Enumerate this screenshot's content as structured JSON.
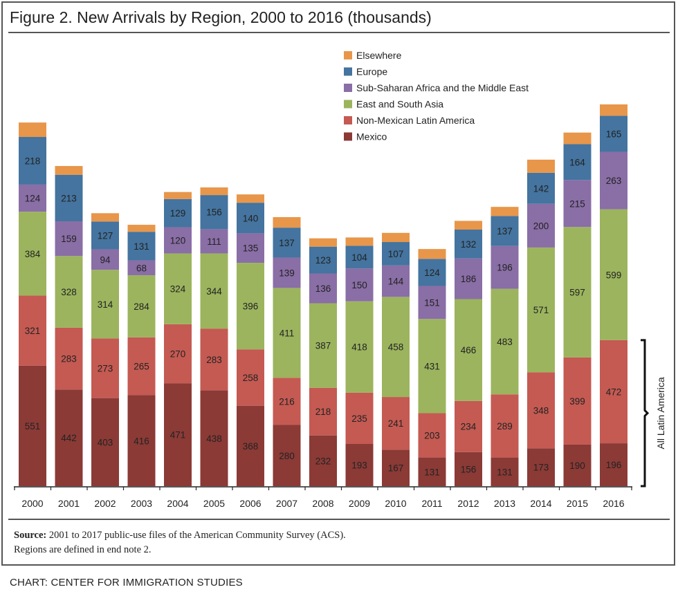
{
  "header": {
    "title": "Figure 2. New Arrivals by Region, 2000 to 2016 (thousands)"
  },
  "footer": {
    "source_label": "Source:",
    "source_text": " 2001 to 2017 public-use files of the American Community  Survey (ACS).",
    "note": "Regions are defined in end note 2.",
    "credit": "CHART: CENTER FOR IMMIGRATION STUDIES"
  },
  "chart_data": {
    "type": "bar",
    "stacked": true,
    "title": "Figure 2. New Arrivals by Region, 2000 to 2016 (thousands)",
    "xlabel": "",
    "ylabel": "",
    "units": "thousands",
    "ylim": [
      0,
      1700
    ],
    "grid": false,
    "legend_position": "top-right",
    "categories": [
      "2000",
      "2001",
      "2002",
      "2003",
      "2004",
      "2005",
      "2006",
      "2007",
      "2008",
      "2009",
      "2010",
      "2011",
      "2012",
      "2013",
      "2014",
      "2015",
      "2016"
    ],
    "series": [
      {
        "name": "Mexico",
        "color": "#8b3a36",
        "labeled": true,
        "values": [
          551,
          442,
          403,
          416,
          471,
          438,
          368,
          280,
          232,
          193,
          167,
          131,
          156,
          131,
          173,
          190,
          196
        ]
      },
      {
        "name": "Non-Mexican Latin America",
        "color": "#c45a52",
        "labeled": true,
        "values": [
          321,
          283,
          273,
          265,
          270,
          283,
          258,
          216,
          218,
          235,
          241,
          203,
          234,
          289,
          348,
          399,
          472
        ]
      },
      {
        "name": "East and South Asia",
        "color": "#9cb45e",
        "labeled": true,
        "values": [
          384,
          328,
          314,
          284,
          324,
          344,
          396,
          411,
          387,
          418,
          458,
          431,
          466,
          483,
          571,
          597,
          599
        ]
      },
      {
        "name": "Sub-Saharan Africa and the Middle East",
        "color": "#8a6ea6",
        "labeled": true,
        "values": [
          124,
          159,
          94,
          68,
          120,
          111,
          135,
          139,
          136,
          150,
          144,
          151,
          186,
          196,
          200,
          215,
          263
        ]
      },
      {
        "name": "Europe",
        "color": "#44749f",
        "labeled": true,
        "values": [
          218,
          213,
          127,
          131,
          129,
          156,
          140,
          137,
          123,
          104,
          107,
          124,
          132,
          137,
          142,
          164,
          165
        ]
      },
      {
        "name": "Elsewhere",
        "color": "#e8964a",
        "labeled": false,
        "estimated": true,
        "values": [
          66,
          40,
          38,
          32,
          32,
          35,
          38,
          48,
          38,
          38,
          42,
          45,
          40,
          42,
          60,
          53,
          52
        ]
      }
    ],
    "legend": [
      "Elsewhere",
      "Europe",
      "Sub-Saharan Africa and the Middle East",
      "East and South Asia",
      "Non-Mexican Latin America",
      "Mexico"
    ],
    "annotations": [
      {
        "text": "All Latin America",
        "type": "bracket",
        "spans_series": [
          "Mexico",
          "Non-Mexican Latin America"
        ],
        "category": "2016"
      }
    ]
  }
}
